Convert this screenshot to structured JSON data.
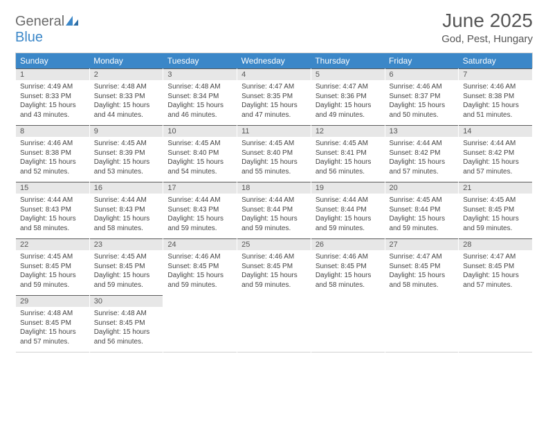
{
  "logo": {
    "general": "General",
    "blue": "Blue"
  },
  "title": "June 2025",
  "location": "God, Pest, Hungary",
  "colors": {
    "header_bg": "#3b87c8",
    "header_text": "#ffffff",
    "daynum_bg": "#e7e7e7",
    "daynum_border_top": "#5a5a5a",
    "body_text": "#444444",
    "page_bg": "#ffffff"
  },
  "daynames": [
    "Sunday",
    "Monday",
    "Tuesday",
    "Wednesday",
    "Thursday",
    "Friday",
    "Saturday"
  ],
  "weeks": [
    [
      {
        "n": "1",
        "sr": "Sunrise: 4:49 AM",
        "ss": "Sunset: 8:33 PM",
        "dl": "Daylight: 15 hours and 43 minutes."
      },
      {
        "n": "2",
        "sr": "Sunrise: 4:48 AM",
        "ss": "Sunset: 8:33 PM",
        "dl": "Daylight: 15 hours and 44 minutes."
      },
      {
        "n": "3",
        "sr": "Sunrise: 4:48 AM",
        "ss": "Sunset: 8:34 PM",
        "dl": "Daylight: 15 hours and 46 minutes."
      },
      {
        "n": "4",
        "sr": "Sunrise: 4:47 AM",
        "ss": "Sunset: 8:35 PM",
        "dl": "Daylight: 15 hours and 47 minutes."
      },
      {
        "n": "5",
        "sr": "Sunrise: 4:47 AM",
        "ss": "Sunset: 8:36 PM",
        "dl": "Daylight: 15 hours and 49 minutes."
      },
      {
        "n": "6",
        "sr": "Sunrise: 4:46 AM",
        "ss": "Sunset: 8:37 PM",
        "dl": "Daylight: 15 hours and 50 minutes."
      },
      {
        "n": "7",
        "sr": "Sunrise: 4:46 AM",
        "ss": "Sunset: 8:38 PM",
        "dl": "Daylight: 15 hours and 51 minutes."
      }
    ],
    [
      {
        "n": "8",
        "sr": "Sunrise: 4:46 AM",
        "ss": "Sunset: 8:38 PM",
        "dl": "Daylight: 15 hours and 52 minutes."
      },
      {
        "n": "9",
        "sr": "Sunrise: 4:45 AM",
        "ss": "Sunset: 8:39 PM",
        "dl": "Daylight: 15 hours and 53 minutes."
      },
      {
        "n": "10",
        "sr": "Sunrise: 4:45 AM",
        "ss": "Sunset: 8:40 PM",
        "dl": "Daylight: 15 hours and 54 minutes."
      },
      {
        "n": "11",
        "sr": "Sunrise: 4:45 AM",
        "ss": "Sunset: 8:40 PM",
        "dl": "Daylight: 15 hours and 55 minutes."
      },
      {
        "n": "12",
        "sr": "Sunrise: 4:45 AM",
        "ss": "Sunset: 8:41 PM",
        "dl": "Daylight: 15 hours and 56 minutes."
      },
      {
        "n": "13",
        "sr": "Sunrise: 4:44 AM",
        "ss": "Sunset: 8:42 PM",
        "dl": "Daylight: 15 hours and 57 minutes."
      },
      {
        "n": "14",
        "sr": "Sunrise: 4:44 AM",
        "ss": "Sunset: 8:42 PM",
        "dl": "Daylight: 15 hours and 57 minutes."
      }
    ],
    [
      {
        "n": "15",
        "sr": "Sunrise: 4:44 AM",
        "ss": "Sunset: 8:43 PM",
        "dl": "Daylight: 15 hours and 58 minutes."
      },
      {
        "n": "16",
        "sr": "Sunrise: 4:44 AM",
        "ss": "Sunset: 8:43 PM",
        "dl": "Daylight: 15 hours and 58 minutes."
      },
      {
        "n": "17",
        "sr": "Sunrise: 4:44 AM",
        "ss": "Sunset: 8:43 PM",
        "dl": "Daylight: 15 hours and 59 minutes."
      },
      {
        "n": "18",
        "sr": "Sunrise: 4:44 AM",
        "ss": "Sunset: 8:44 PM",
        "dl": "Daylight: 15 hours and 59 minutes."
      },
      {
        "n": "19",
        "sr": "Sunrise: 4:44 AM",
        "ss": "Sunset: 8:44 PM",
        "dl": "Daylight: 15 hours and 59 minutes."
      },
      {
        "n": "20",
        "sr": "Sunrise: 4:45 AM",
        "ss": "Sunset: 8:44 PM",
        "dl": "Daylight: 15 hours and 59 minutes."
      },
      {
        "n": "21",
        "sr": "Sunrise: 4:45 AM",
        "ss": "Sunset: 8:45 PM",
        "dl": "Daylight: 15 hours and 59 minutes."
      }
    ],
    [
      {
        "n": "22",
        "sr": "Sunrise: 4:45 AM",
        "ss": "Sunset: 8:45 PM",
        "dl": "Daylight: 15 hours and 59 minutes."
      },
      {
        "n": "23",
        "sr": "Sunrise: 4:45 AM",
        "ss": "Sunset: 8:45 PM",
        "dl": "Daylight: 15 hours and 59 minutes."
      },
      {
        "n": "24",
        "sr": "Sunrise: 4:46 AM",
        "ss": "Sunset: 8:45 PM",
        "dl": "Daylight: 15 hours and 59 minutes."
      },
      {
        "n": "25",
        "sr": "Sunrise: 4:46 AM",
        "ss": "Sunset: 8:45 PM",
        "dl": "Daylight: 15 hours and 59 minutes."
      },
      {
        "n": "26",
        "sr": "Sunrise: 4:46 AM",
        "ss": "Sunset: 8:45 PM",
        "dl": "Daylight: 15 hours and 58 minutes."
      },
      {
        "n": "27",
        "sr": "Sunrise: 4:47 AM",
        "ss": "Sunset: 8:45 PM",
        "dl": "Daylight: 15 hours and 58 minutes."
      },
      {
        "n": "28",
        "sr": "Sunrise: 4:47 AM",
        "ss": "Sunset: 8:45 PM",
        "dl": "Daylight: 15 hours and 57 minutes."
      }
    ],
    [
      {
        "n": "29",
        "sr": "Sunrise: 4:48 AM",
        "ss": "Sunset: 8:45 PM",
        "dl": "Daylight: 15 hours and 57 minutes."
      },
      {
        "n": "30",
        "sr": "Sunrise: 4:48 AM",
        "ss": "Sunset: 8:45 PM",
        "dl": "Daylight: 15 hours and 56 minutes."
      },
      {
        "n": "",
        "sr": "",
        "ss": "",
        "dl": ""
      },
      {
        "n": "",
        "sr": "",
        "ss": "",
        "dl": ""
      },
      {
        "n": "",
        "sr": "",
        "ss": "",
        "dl": ""
      },
      {
        "n": "",
        "sr": "",
        "ss": "",
        "dl": ""
      },
      {
        "n": "",
        "sr": "",
        "ss": "",
        "dl": ""
      }
    ]
  ]
}
